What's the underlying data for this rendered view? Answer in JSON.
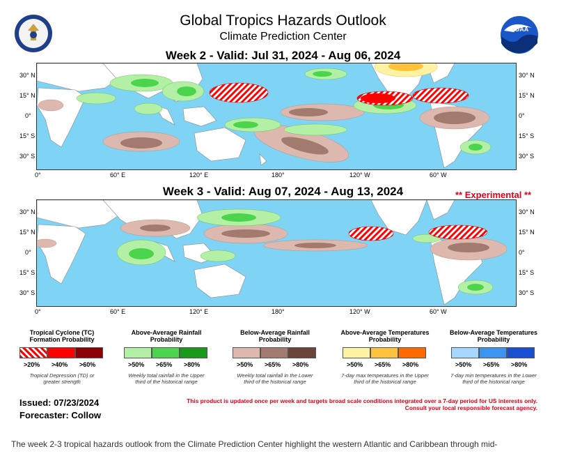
{
  "header": {
    "title": "Global Tropics Hazards Outlook",
    "subtitle": "Climate Prediction Center",
    "logo_left": "doc-seal-icon",
    "logo_right_text": "NOAA"
  },
  "week2": {
    "heading": "Week 2 - Valid: Jul 31, 2024 - Aug 06, 2024"
  },
  "week3": {
    "heading": "Week 3 - Valid: Aug 07, 2024 - Aug 13, 2024",
    "experimental": "** Experimental **"
  },
  "axes": {
    "lat_labels": [
      "30° N",
      "15° N",
      "0°",
      "15° S",
      "30° S"
    ],
    "lon_labels": [
      "0°",
      "60° E",
      "120° E",
      "180°",
      "120° W",
      "60° W"
    ]
  },
  "legend": {
    "tc": {
      "title": "Tropical Cyclone (TC) Formation Probability",
      "levels": [
        ">20%",
        ">40%",
        ">60%"
      ],
      "note": "Tropical Depression (TD) or greater strength",
      "colors": [
        "#ffffff",
        "#ff0000",
        "#8b0000"
      ]
    },
    "above_rain": {
      "title": "Above-Average Rainfall Probability",
      "levels": [
        ">50%",
        ">65%",
        ">80%"
      ],
      "note": "Weekly total rainfall in the Upper third of the historical range",
      "colors": [
        "#b3f0a6",
        "#4cd44c",
        "#1a9a1a"
      ]
    },
    "below_rain": {
      "title": "Below-Average Rainfall Probability",
      "levels": [
        ">50%",
        ">65%",
        ">80%"
      ],
      "note": "Weekly total rainfall in the Lower third of the historical range",
      "colors": [
        "#dcb8ae",
        "#a37a6e",
        "#6a4439"
      ]
    },
    "above_temp": {
      "title": "Above-Average Temperatures Probability",
      "levels": [
        ">50%",
        ">65%",
        ">80%"
      ],
      "note": "7-day max temperatures in the Upper third of the historical range",
      "colors": [
        "#fff3a3",
        "#ffc23c",
        "#ff6a00"
      ]
    },
    "below_temp": {
      "title": "Below-Average Temperatures Probability",
      "levels": [
        ">50%",
        ">65%",
        ">80%"
      ],
      "note": "7-day min temperatures in the Lower third of the historical range",
      "colors": [
        "#a6d7ff",
        "#3b95f0",
        "#1a4fd1"
      ]
    }
  },
  "footer": {
    "issued": "Issued: 07/23/2024",
    "forecaster": "Forecaster: Collow",
    "notice_line1": "This product is updated once per week and targets broad scale conditions integrated over a 7-day period for US interests only.",
    "notice_line2": "Consult your local responsible forecast agency."
  },
  "caption": "The week 2-3 tropical hazards outlook from the Climate Prediction Center highlight the western Atlantic and Caribbean through mid-"
}
